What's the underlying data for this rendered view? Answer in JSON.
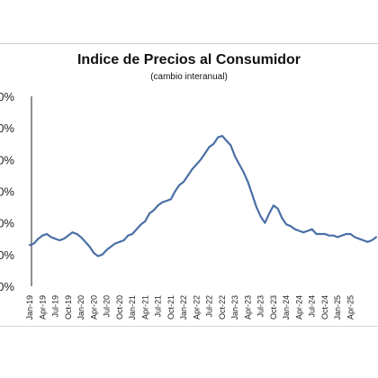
{
  "chart_data": {
    "type": "line",
    "title": "Indice de Precios al Consumidor",
    "subtitle": "(cambio interanual)",
    "y_tick_labels": [
      "0%",
      "0%",
      "0%",
      "0%",
      "0%",
      "0%",
      "0%"
    ],
    "x_tick_labels": [
      "Jan-19",
      "Apr-19",
      "Jul-19",
      "Oct-19",
      "Jan-20",
      "Apr-20",
      "Jul-20",
      "Oct-20",
      "Jan-21",
      "Apr-21",
      "Jul-21",
      "Oct-21",
      "Jan-22",
      "Apr-22",
      "Jul-22",
      "Oct-22",
      "Jan-23",
      "Apr-23",
      "Jul-23",
      "Oct-23",
      "Jan-24",
      "Apr-24",
      "Jul-24",
      "Oct-24",
      "Jan-25",
      "Apr-25"
    ],
    "grid": false,
    "legend": "none",
    "line_color": "#4a6fa5",
    "series": [
      {
        "values": [
          2.6,
          2.7,
          3.0,
          3.2,
          3.3,
          3.1,
          3.0,
          2.9,
          3.0,
          3.2,
          3.4,
          3.3,
          3.1,
          2.8,
          2.5,
          2.1,
          1.9,
          2.0,
          2.3,
          2.5,
          2.7,
          2.8,
          2.9,
          3.2,
          3.3,
          3.6,
          3.9,
          4.1,
          4.6,
          4.8,
          5.1,
          5.3,
          5.4,
          5.5,
          6.0,
          6.4,
          6.6,
          7.0,
          7.4,
          7.7,
          8.0,
          8.4,
          8.8,
          9.0,
          9.4,
          9.5,
          9.2,
          8.9,
          8.2,
          7.7,
          7.2,
          6.6,
          5.8,
          5.0,
          4.4,
          4.0,
          4.6,
          5.1,
          4.9,
          4.3,
          3.9,
          3.8,
          3.6,
          3.5,
          3.4,
          3.5,
          3.6,
          3.3,
          3.3,
          3.3,
          3.2,
          3.2,
          3.1,
          3.2,
          3.3,
          3.3,
          3.1,
          3.0,
          2.9,
          2.8,
          2.9,
          3.1
        ]
      }
    ]
  }
}
